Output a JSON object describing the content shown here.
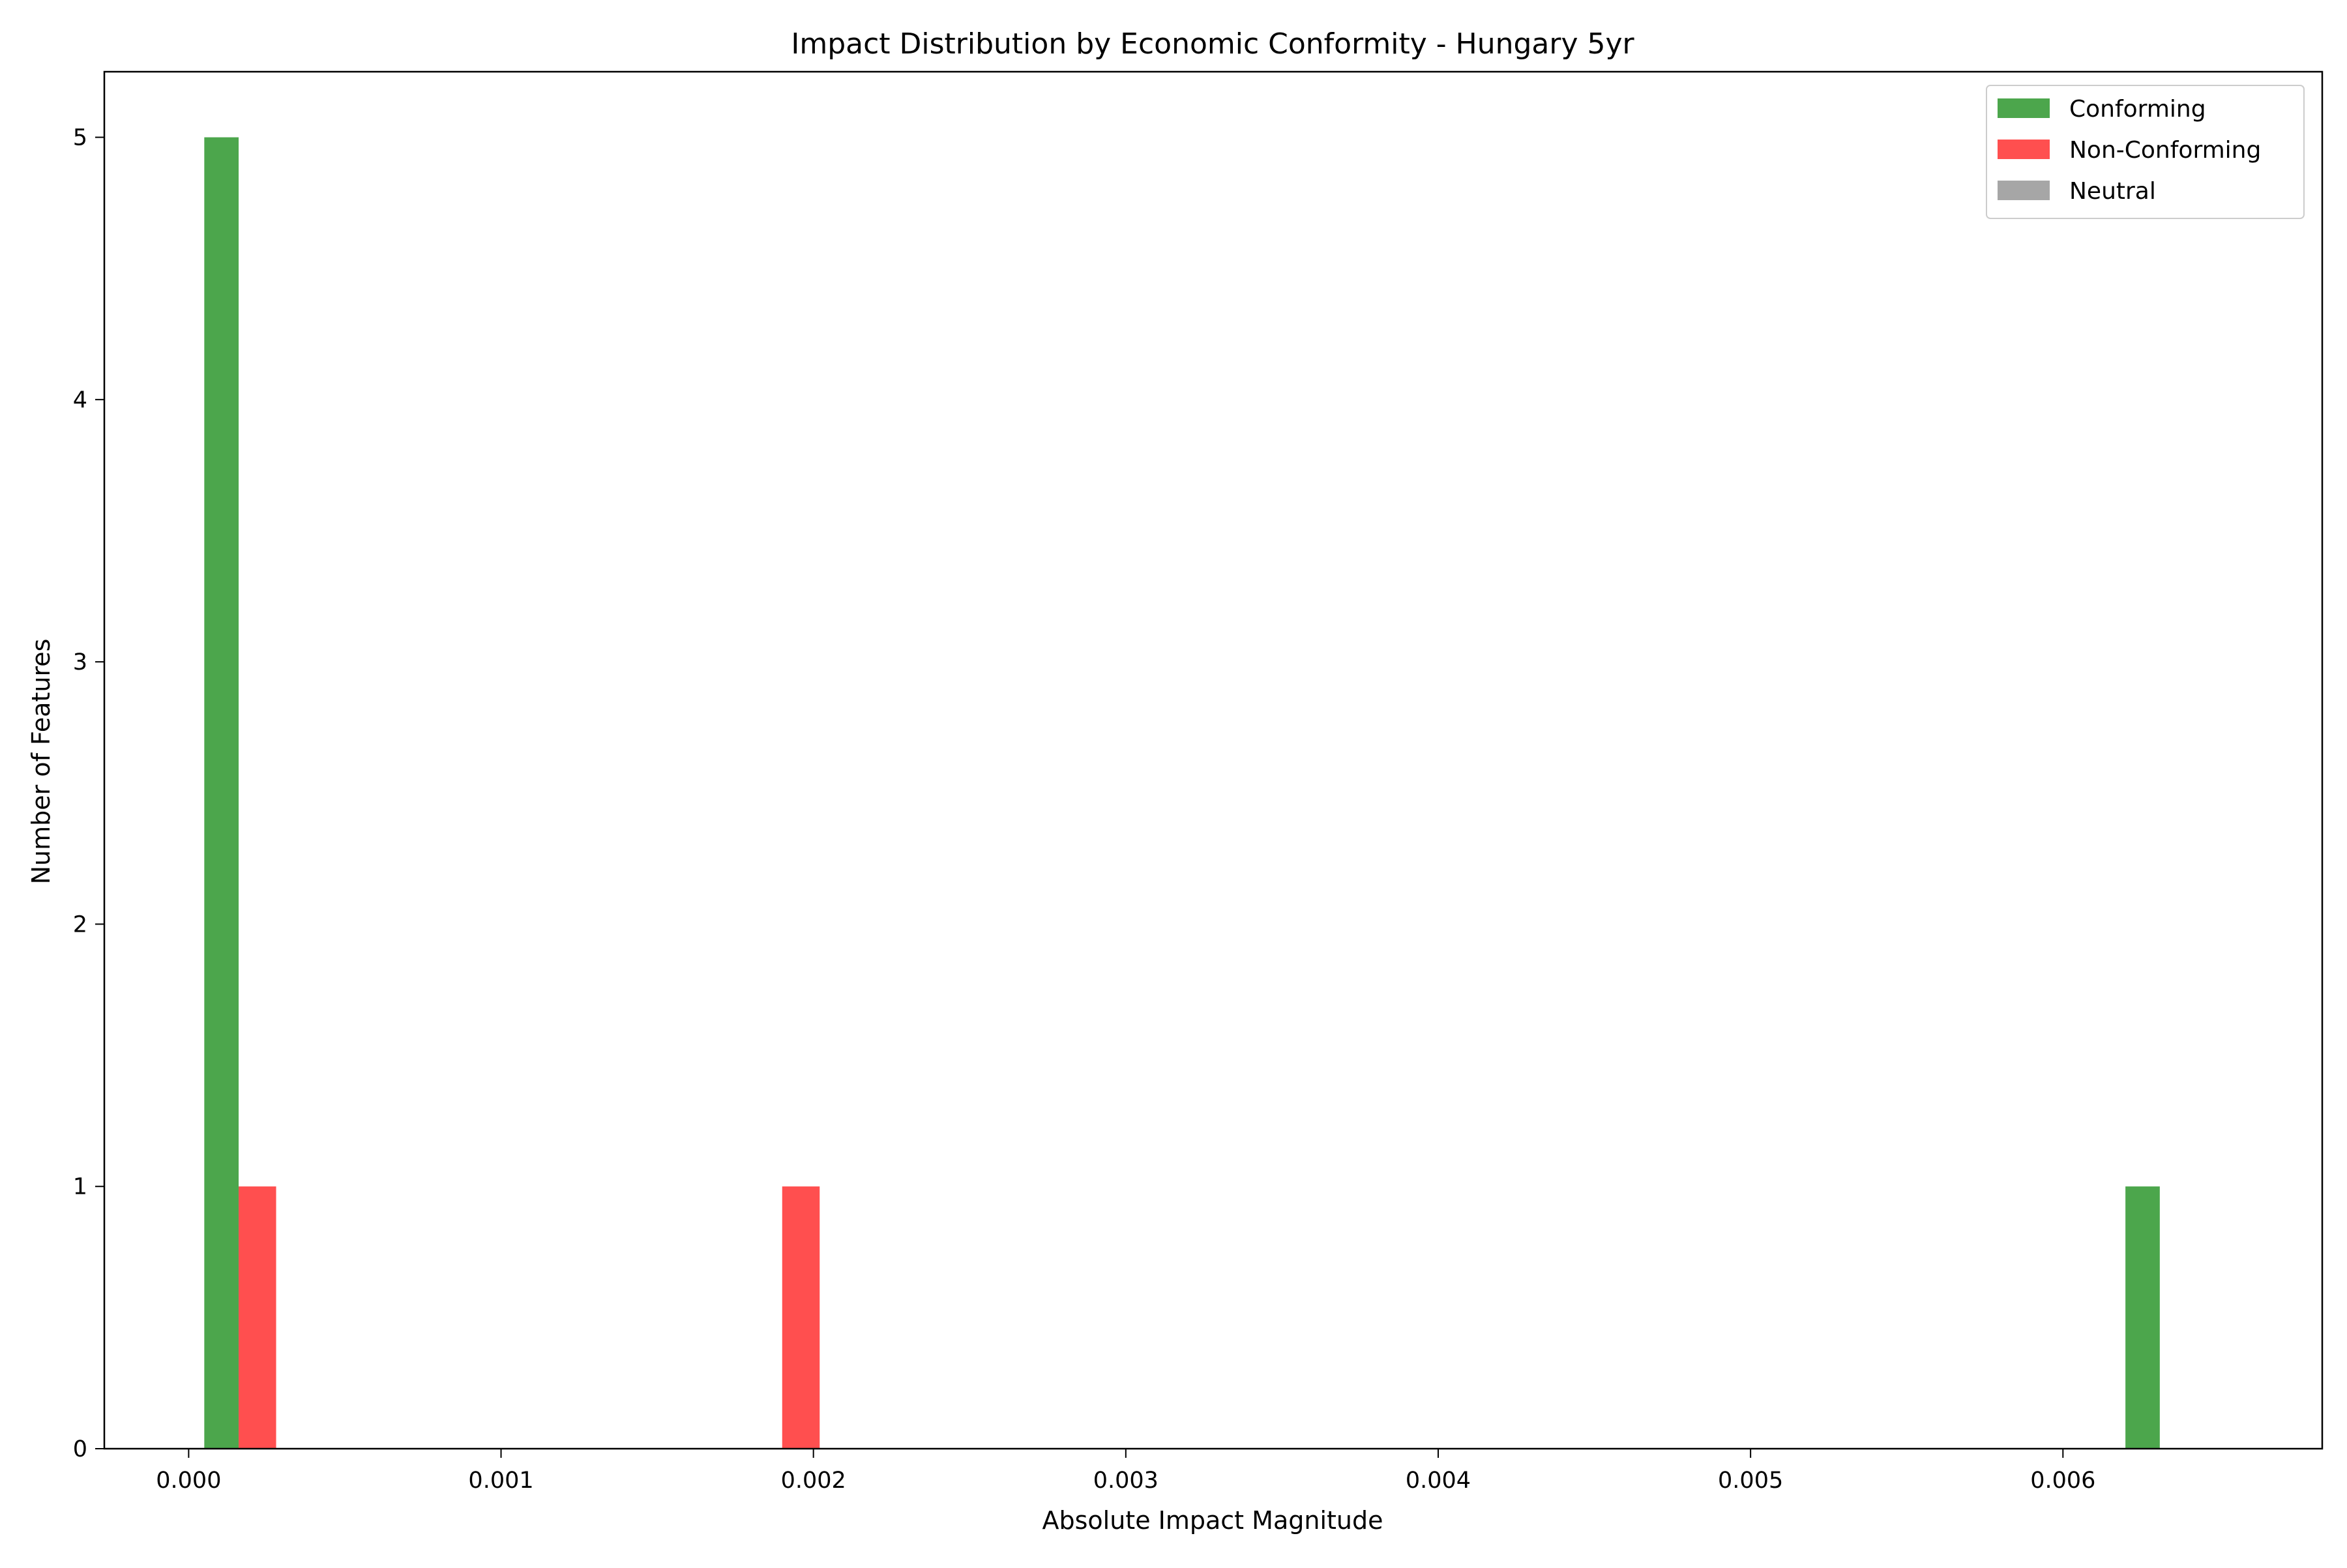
{
  "chart_data": {
    "type": "bar",
    "title": "Impact Distribution by Economic Conformity - Hungary 5yr",
    "xlabel": "Absolute Impact Magnitude",
    "ylabel": "Number of Features",
    "xlim": [
      -0.00027,
      0.00683
    ],
    "ylim": [
      0,
      5.25
    ],
    "xticks": [
      0.0,
      0.001,
      0.002,
      0.003,
      0.004,
      0.005,
      0.006
    ],
    "xtick_labels": [
      "0.000",
      "0.001",
      "0.002",
      "0.003",
      "0.004",
      "0.005",
      "0.006"
    ],
    "yticks": [
      0,
      1,
      2,
      3,
      4,
      5
    ],
    "ytick_labels": [
      "0",
      "1",
      "2",
      "3",
      "4",
      "5"
    ],
    "grid": false,
    "legend_position": "top-right",
    "series": [
      {
        "name": "Conforming",
        "color": "#4ca64c",
        "bars": [
          {
            "x0": 5e-05,
            "x1": 0.00016,
            "count": 5
          },
          {
            "x0": 0.0062,
            "x1": 0.00631,
            "count": 1
          }
        ]
      },
      {
        "name": "Non-Conforming",
        "color": "#ff4f4f",
        "bars": [
          {
            "x0": 0.00016,
            "x1": 0.00028,
            "count": 1
          },
          {
            "x0": 0.0019,
            "x1": 0.00202,
            "count": 1
          }
        ]
      },
      {
        "name": "Neutral",
        "color": "#a6a6a6",
        "bars": []
      }
    ]
  }
}
